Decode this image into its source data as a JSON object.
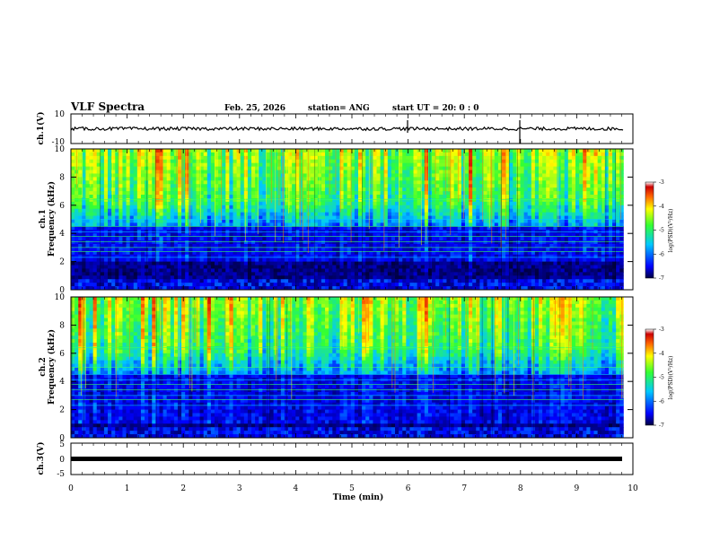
{
  "header": {
    "title": "VLF Spectra",
    "date": "Feb. 25, 2026",
    "station": "station= ANG",
    "start": "start  UT =   20: 0  : 0"
  },
  "chart_data": [
    {
      "type": "line",
      "name": "ch1-waveform",
      "ylabel": "ch.1(V)",
      "ylim": [
        -10,
        10
      ],
      "yticks": [
        "10",
        "-10"
      ],
      "x_range_min": [
        0,
        9.83
      ],
      "approx_level": 0,
      "markers_min": [
        6.0,
        8.0
      ]
    },
    {
      "type": "heatmap",
      "name": "ch1-spectrogram",
      "ylabel": "ch.1\nFrequency (kHz)",
      "ylim": [
        0,
        10
      ],
      "yticks": [
        "0",
        "2",
        "4",
        "6",
        "8",
        "10"
      ],
      "x_range_min": [
        0,
        9.83
      ],
      "colorbar": {
        "label": "log(PSD)(V²/Hz)",
        "range": [
          -7,
          -3
        ],
        "ticks": [
          "-3",
          "-4",
          "-5",
          "-6",
          "-7"
        ]
      }
    },
    {
      "type": "heatmap",
      "name": "ch2-spectrogram",
      "ylabel": "ch.2\nFrequency (kHz)",
      "ylim": [
        0,
        10
      ],
      "yticks": [
        "0",
        "2",
        "4",
        "6",
        "8",
        "10"
      ],
      "x_range_min": [
        0,
        9.83
      ],
      "colorbar": {
        "label": "log(PSD)(V²/Hz)",
        "range": [
          -7,
          -3
        ],
        "ticks": [
          "-3",
          "-4",
          "-5",
          "-6",
          "-7"
        ]
      }
    },
    {
      "type": "line",
      "name": "ch3-waveform",
      "ylabel": "ch.3(V)",
      "ylim": [
        -5,
        5
      ],
      "yticks": [
        "5",
        "0",
        "-5"
      ],
      "x_range_min": [
        0,
        9.83
      ],
      "approx_level": -1
    }
  ],
  "xaxis": {
    "label": "Time  (min)",
    "ticks": [
      "0",
      "1",
      "2",
      "3",
      "4",
      "5",
      "6",
      "7",
      "8",
      "9",
      "10"
    ],
    "xlim": [
      0,
      10
    ]
  },
  "colors": {
    "colormap": [
      "#00004a",
      "#0000ff",
      "#00ccff",
      "#33ff33",
      "#ffff00",
      "#ff8800",
      "#cc0000",
      "#ffffff"
    ],
    "trace": "#000000"
  }
}
